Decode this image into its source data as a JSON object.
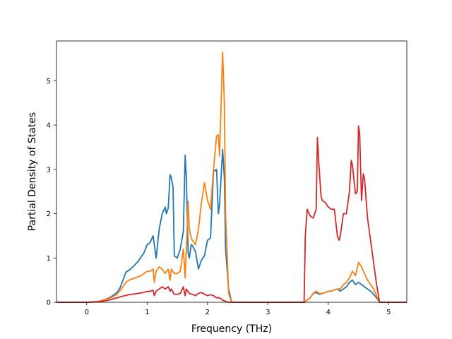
{
  "chart_data": {
    "type": "line",
    "title": "",
    "xlabel": "Frequency (THz)",
    "ylabel": "Partial Density of States",
    "xlim": [
      -0.5,
      5.3
    ],
    "ylim": [
      0,
      5.9
    ],
    "xticks": [
      0,
      1,
      2,
      3,
      4,
      5
    ],
    "yticks": [
      0,
      1,
      2,
      3,
      4,
      5
    ],
    "grid": false,
    "legend": "none",
    "series": [
      {
        "color": "#1f77b4",
        "x": [
          -0.5,
          0.0,
          0.2,
          0.3,
          0.4,
          0.5,
          0.55,
          0.6,
          0.65,
          0.7,
          0.75,
          0.8,
          0.85,
          0.9,
          0.95,
          1.0,
          1.05,
          1.1,
          1.15,
          1.2,
          1.25,
          1.3,
          1.32,
          1.35,
          1.38,
          1.4,
          1.43,
          1.45,
          1.5,
          1.55,
          1.6,
          1.63,
          1.65,
          1.68,
          1.7,
          1.73,
          1.75,
          1.8,
          1.85,
          1.9,
          1.95,
          2.0,
          2.05,
          2.1,
          2.15,
          2.18,
          2.2,
          2.25,
          2.28,
          2.3,
          2.35,
          2.4,
          2.5,
          3.0,
          3.6,
          3.65,
          3.7,
          3.75,
          3.8,
          3.85,
          3.9,
          3.95,
          4.0,
          4.05,
          4.1,
          4.15,
          4.2,
          4.25,
          4.3,
          4.35,
          4.4,
          4.45,
          4.5,
          4.55,
          4.6,
          4.65,
          4.7,
          4.75,
          4.8,
          4.85,
          5.3
        ],
        "y": [
          0,
          0,
          0.02,
          0.06,
          0.12,
          0.22,
          0.32,
          0.5,
          0.68,
          0.72,
          0.78,
          0.85,
          0.92,
          1.02,
          1.12,
          1.3,
          1.35,
          1.5,
          1.0,
          1.65,
          2.0,
          2.15,
          2.0,
          2.12,
          2.88,
          2.82,
          2.6,
          1.05,
          1.0,
          1.2,
          1.6,
          3.32,
          2.8,
          1.1,
          1.0,
          1.3,
          1.28,
          1.15,
          0.75,
          0.95,
          1.05,
          1.4,
          1.45,
          2.95,
          3.0,
          2.0,
          2.2,
          3.45,
          2.8,
          1.2,
          0.3,
          0,
          0,
          0,
          0,
          0.05,
          0.1,
          0.2,
          0.22,
          0.18,
          0.2,
          0.22,
          0.25,
          0.25,
          0.28,
          0.3,
          0.25,
          0.3,
          0.35,
          0.45,
          0.5,
          0.4,
          0.45,
          0.4,
          0.35,
          0.3,
          0.25,
          0.18,
          0.1,
          0,
          0
        ]
      },
      {
        "color": "#ff7f0e",
        "x": [
          -0.5,
          0.0,
          0.2,
          0.3,
          0.4,
          0.5,
          0.55,
          0.6,
          0.65,
          0.7,
          0.8,
          0.9,
          1.0,
          1.05,
          1.1,
          1.12,
          1.15,
          1.2,
          1.25,
          1.3,
          1.35,
          1.38,
          1.4,
          1.45,
          1.5,
          1.55,
          1.6,
          1.63,
          1.65,
          1.68,
          1.7,
          1.73,
          1.75,
          1.8,
          1.85,
          1.9,
          1.95,
          2.0,
          2.05,
          2.1,
          2.15,
          2.18,
          2.2,
          2.25,
          2.28,
          2.3,
          2.35,
          2.4,
          2.5,
          3.0,
          3.6,
          3.65,
          3.7,
          3.75,
          3.8,
          3.85,
          3.9,
          3.95,
          4.0,
          4.05,
          4.1,
          4.15,
          4.2,
          4.25,
          4.3,
          4.35,
          4.4,
          4.45,
          4.5,
          4.55,
          4.6,
          4.65,
          4.7,
          4.75,
          4.8,
          4.85,
          5.3
        ],
        "y": [
          0,
          0,
          0.02,
          0.06,
          0.1,
          0.18,
          0.26,
          0.35,
          0.45,
          0.5,
          0.55,
          0.6,
          0.7,
          0.7,
          0.75,
          0.45,
          0.7,
          0.8,
          0.75,
          0.65,
          0.75,
          0.5,
          0.75,
          0.65,
          0.65,
          0.7,
          1.2,
          0.55,
          1.2,
          2.28,
          1.65,
          1.45,
          1.4,
          1.3,
          1.65,
          2.25,
          2.7,
          2.3,
          2.1,
          3.0,
          3.75,
          3.78,
          3.3,
          5.65,
          4.5,
          2.0,
          0.2,
          0,
          0,
          0,
          0,
          0.05,
          0.1,
          0.2,
          0.25,
          0.2,
          0.2,
          0.22,
          0.25,
          0.25,
          0.28,
          0.3,
          0.3,
          0.4,
          0.45,
          0.55,
          0.7,
          0.6,
          0.9,
          0.8,
          0.65,
          0.5,
          0.4,
          0.3,
          0.15,
          0,
          0
        ]
      },
      {
        "color": "#d62728",
        "x": [
          -0.5,
          0.0,
          0.2,
          0.3,
          0.4,
          0.5,
          0.6,
          0.7,
          0.8,
          0.9,
          1.0,
          1.05,
          1.1,
          1.12,
          1.15,
          1.2,
          1.25,
          1.3,
          1.35,
          1.38,
          1.4,
          1.45,
          1.5,
          1.55,
          1.6,
          1.63,
          1.65,
          1.7,
          1.75,
          1.8,
          1.85,
          1.9,
          1.95,
          2.0,
          2.05,
          2.1,
          2.15,
          2.2,
          2.25,
          2.3,
          2.35,
          2.4,
          2.5,
          3.0,
          3.6,
          3.62,
          3.65,
          3.7,
          3.75,
          3.8,
          3.82,
          3.85,
          3.88,
          3.9,
          3.95,
          4.0,
          4.05,
          4.1,
          4.15,
          4.18,
          4.2,
          4.25,
          4.3,
          4.35,
          4.38,
          4.4,
          4.45,
          4.48,
          4.5,
          4.52,
          4.55,
          4.58,
          4.6,
          4.65,
          4.7,
          4.75,
          4.8,
          4.85,
          5.3
        ],
        "y": [
          0,
          0,
          0.01,
          0.03,
          0.06,
          0.1,
          0.14,
          0.17,
          0.19,
          0.21,
          0.24,
          0.25,
          0.27,
          0.15,
          0.25,
          0.3,
          0.35,
          0.3,
          0.35,
          0.25,
          0.3,
          0.18,
          0.18,
          0.2,
          0.35,
          0.15,
          0.3,
          0.2,
          0.18,
          0.15,
          0.2,
          0.22,
          0.18,
          0.15,
          0.17,
          0.15,
          0.1,
          0.1,
          0.05,
          0.02,
          0,
          0,
          0,
          0,
          0,
          1.5,
          2.1,
          1.95,
          1.9,
          2.1,
          3.72,
          3.0,
          2.4,
          2.3,
          2.25,
          2.15,
          2.1,
          2.1,
          1.5,
          1.4,
          1.5,
          2.0,
          2.0,
          2.5,
          3.2,
          3.1,
          2.45,
          2.5,
          3.98,
          3.8,
          2.3,
          2.9,
          2.8,
          1.9,
          1.4,
          0.9,
          0.4,
          0,
          0
        ]
      }
    ]
  }
}
